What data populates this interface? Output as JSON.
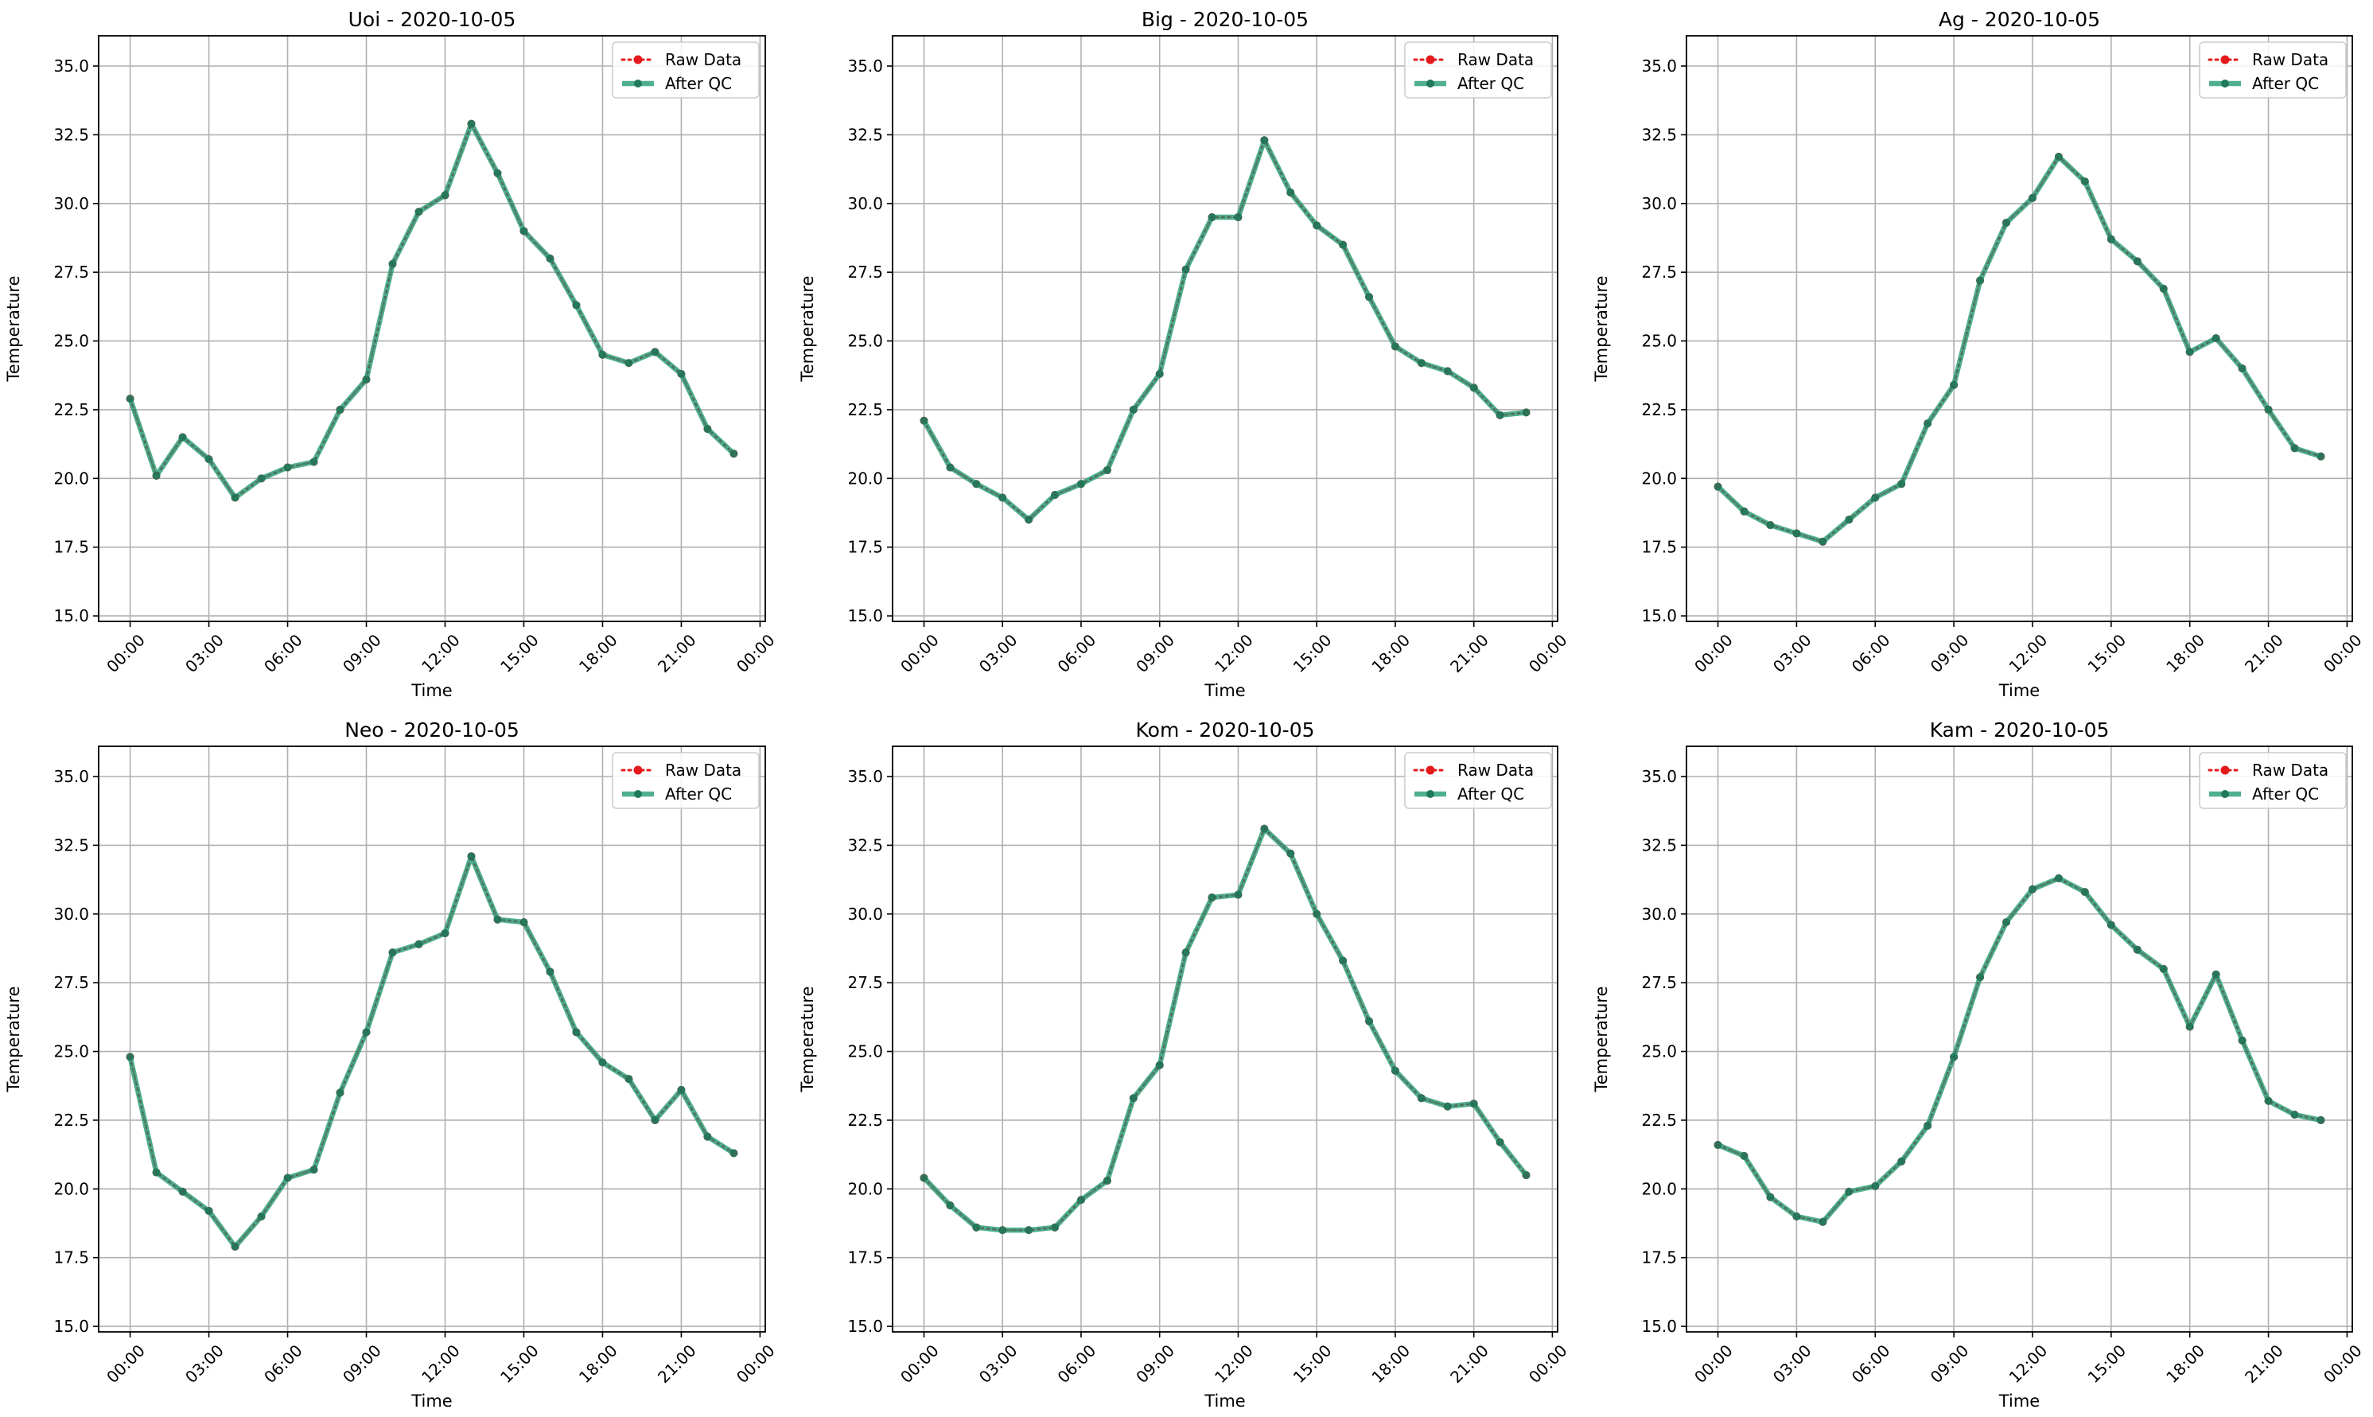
{
  "chart_data": [
    {
      "type": "line",
      "title": "Uoi - 2020-10-05",
      "xlabel": "Time",
      "ylabel": "Temperature",
      "ylim": [
        14.8,
        36.1
      ],
      "yticks": [
        "15.0",
        "17.5",
        "20.0",
        "22.5",
        "25.0",
        "27.5",
        "30.0",
        "32.5",
        "35.0"
      ],
      "xticks": [
        "00:00",
        "03:00",
        "06:00",
        "09:00",
        "12:00",
        "15:00",
        "18:00",
        "21:00",
        "00:00"
      ],
      "grid": true,
      "legend": "top-right",
      "x_hours": [
        0,
        1,
        2,
        3,
        4,
        5,
        6,
        7,
        8,
        9,
        10,
        11,
        12,
        13,
        14,
        15,
        16,
        17,
        18,
        19,
        20,
        21,
        22,
        23
      ],
      "series": [
        {
          "name": "Raw Data",
          "color": "#e41a1c",
          "values": [
            22.9,
            20.1,
            21.5,
            20.7,
            19.3,
            20.0,
            20.4,
            20.6,
            22.5,
            23.6,
            27.8,
            29.7,
            30.3,
            32.9,
            31.1,
            29.0,
            28.0,
            26.3,
            24.5,
            24.2,
            24.6,
            23.8,
            21.8,
            20.9
          ]
        },
        {
          "name": "After QC",
          "color": "#2a9d78",
          "values": [
            22.9,
            20.1,
            21.5,
            20.7,
            19.3,
            20.0,
            20.4,
            20.6,
            22.5,
            23.6,
            27.8,
            29.7,
            30.3,
            32.9,
            31.1,
            29.0,
            28.0,
            26.3,
            24.5,
            24.2,
            24.6,
            23.8,
            21.8,
            20.9
          ]
        }
      ]
    },
    {
      "type": "line",
      "title": "Big - 2020-10-05",
      "xlabel": "Time",
      "ylabel": "Temperature",
      "ylim": [
        14.8,
        36.1
      ],
      "yticks": [
        "15.0",
        "17.5",
        "20.0",
        "22.5",
        "25.0",
        "27.5",
        "30.0",
        "32.5",
        "35.0"
      ],
      "xticks": [
        "00:00",
        "03:00",
        "06:00",
        "09:00",
        "12:00",
        "15:00",
        "18:00",
        "21:00",
        "00:00"
      ],
      "grid": true,
      "legend": "top-right",
      "x_hours": [
        0,
        1,
        2,
        3,
        4,
        5,
        6,
        7,
        8,
        9,
        10,
        11,
        12,
        13,
        14,
        15,
        16,
        17,
        18,
        19,
        20,
        21,
        22,
        23
      ],
      "series": [
        {
          "name": "Raw Data",
          "color": "#e41a1c",
          "values": [
            22.1,
            20.4,
            19.8,
            19.3,
            18.5,
            19.4,
            19.8,
            20.3,
            22.5,
            23.8,
            27.6,
            29.5,
            29.5,
            32.3,
            30.4,
            29.2,
            28.5,
            26.6,
            24.8,
            24.2,
            23.9,
            23.3,
            22.3,
            22.4
          ]
        },
        {
          "name": "After QC",
          "color": "#2a9d78",
          "values": [
            22.1,
            20.4,
            19.8,
            19.3,
            18.5,
            19.4,
            19.8,
            20.3,
            22.5,
            23.8,
            27.6,
            29.5,
            29.5,
            32.3,
            30.4,
            29.2,
            28.5,
            26.6,
            24.8,
            24.2,
            23.9,
            23.3,
            22.3,
            22.4
          ]
        }
      ]
    },
    {
      "type": "line",
      "title": "Ag - 2020-10-05",
      "xlabel": "Time",
      "ylabel": "Temperature",
      "ylim": [
        14.8,
        36.1
      ],
      "yticks": [
        "15.0",
        "17.5",
        "20.0",
        "22.5",
        "25.0",
        "27.5",
        "30.0",
        "32.5",
        "35.0"
      ],
      "xticks": [
        "00:00",
        "03:00",
        "06:00",
        "09:00",
        "12:00",
        "15:00",
        "18:00",
        "21:00",
        "00:00"
      ],
      "grid": true,
      "legend": "top-right",
      "x_hours": [
        0,
        1,
        2,
        3,
        4,
        5,
        6,
        7,
        8,
        9,
        10,
        11,
        12,
        13,
        14,
        15,
        16,
        17,
        18,
        19,
        20,
        21,
        22,
        23
      ],
      "series": [
        {
          "name": "Raw Data",
          "color": "#e41a1c",
          "values": [
            19.7,
            18.8,
            18.3,
            18.0,
            17.7,
            18.5,
            19.3,
            19.8,
            22.0,
            23.4,
            27.2,
            29.3,
            30.2,
            31.7,
            30.8,
            28.7,
            27.9,
            26.9,
            24.6,
            25.1,
            24.0,
            22.5,
            21.1,
            20.8
          ]
        },
        {
          "name": "After QC",
          "color": "#2a9d78",
          "values": [
            19.7,
            18.8,
            18.3,
            18.0,
            17.7,
            18.5,
            19.3,
            19.8,
            22.0,
            23.4,
            27.2,
            29.3,
            30.2,
            31.7,
            30.8,
            28.7,
            27.9,
            26.9,
            24.6,
            25.1,
            24.0,
            22.5,
            21.1,
            20.8
          ]
        }
      ]
    },
    {
      "type": "line",
      "title": "Neo - 2020-10-05",
      "xlabel": "Time",
      "ylabel": "Temperature",
      "ylim": [
        14.8,
        36.1
      ],
      "yticks": [
        "15.0",
        "17.5",
        "20.0",
        "22.5",
        "25.0",
        "27.5",
        "30.0",
        "32.5",
        "35.0"
      ],
      "xticks": [
        "00:00",
        "03:00",
        "06:00",
        "09:00",
        "12:00",
        "15:00",
        "18:00",
        "21:00",
        "00:00"
      ],
      "grid": true,
      "legend": "top-right",
      "x_hours": [
        0,
        1,
        2,
        3,
        4,
        5,
        6,
        7,
        8,
        9,
        10,
        11,
        12,
        13,
        14,
        15,
        16,
        17,
        18,
        19,
        20,
        21,
        22,
        23
      ],
      "series": [
        {
          "name": "Raw Data",
          "color": "#e41a1c",
          "values": [
            24.8,
            20.6,
            19.9,
            19.2,
            17.9,
            19.0,
            20.4,
            20.7,
            23.5,
            25.7,
            28.6,
            28.9,
            29.3,
            32.1,
            29.8,
            29.7,
            27.9,
            25.7,
            24.6,
            24.0,
            22.5,
            23.6,
            21.9,
            21.3
          ]
        },
        {
          "name": "After QC",
          "color": "#2a9d78",
          "values": [
            24.8,
            20.6,
            19.9,
            19.2,
            17.9,
            19.0,
            20.4,
            20.7,
            23.5,
            25.7,
            28.6,
            28.9,
            29.3,
            32.1,
            29.8,
            29.7,
            27.9,
            25.7,
            24.6,
            24.0,
            22.5,
            23.6,
            21.9,
            21.3
          ]
        }
      ]
    },
    {
      "type": "line",
      "title": "Kom - 2020-10-05",
      "xlabel": "Time",
      "ylabel": "Temperature",
      "ylim": [
        14.8,
        36.1
      ],
      "yticks": [
        "15.0",
        "17.5",
        "20.0",
        "22.5",
        "25.0",
        "27.5",
        "30.0",
        "32.5",
        "35.0"
      ],
      "xticks": [
        "00:00",
        "03:00",
        "06:00",
        "09:00",
        "12:00",
        "15:00",
        "18:00",
        "21:00",
        "00:00"
      ],
      "grid": true,
      "legend": "top-right",
      "x_hours": [
        0,
        1,
        2,
        3,
        4,
        5,
        6,
        7,
        8,
        9,
        10,
        11,
        12,
        13,
        14,
        15,
        16,
        17,
        18,
        19,
        20,
        21,
        22,
        23
      ],
      "series": [
        {
          "name": "Raw Data",
          "color": "#e41a1c",
          "values": [
            20.4,
            19.4,
            18.6,
            18.5,
            18.5,
            18.6,
            19.6,
            20.3,
            23.3,
            24.5,
            28.6,
            30.6,
            30.7,
            33.1,
            32.2,
            30.0,
            28.3,
            26.1,
            24.3,
            23.3,
            23.0,
            23.1,
            21.7,
            20.5
          ]
        },
        {
          "name": "After QC",
          "color": "#2a9d78",
          "values": [
            20.4,
            19.4,
            18.6,
            18.5,
            18.5,
            18.6,
            19.6,
            20.3,
            23.3,
            24.5,
            28.6,
            30.6,
            30.7,
            33.1,
            32.2,
            30.0,
            28.3,
            26.1,
            24.3,
            23.3,
            23.0,
            23.1,
            21.7,
            20.5
          ]
        }
      ]
    },
    {
      "type": "line",
      "title": "Kam - 2020-10-05",
      "xlabel": "Time",
      "ylabel": "Temperature",
      "ylim": [
        14.8,
        36.1
      ],
      "yticks": [
        "15.0",
        "17.5",
        "20.0",
        "22.5",
        "25.0",
        "27.5",
        "30.0",
        "32.5",
        "35.0"
      ],
      "xticks": [
        "00:00",
        "03:00",
        "06:00",
        "09:00",
        "12:00",
        "15:00",
        "18:00",
        "21:00",
        "00:00"
      ],
      "grid": true,
      "legend": "top-right",
      "x_hours": [
        0,
        1,
        2,
        3,
        4,
        5,
        6,
        7,
        8,
        9,
        10,
        11,
        12,
        13,
        14,
        15,
        16,
        17,
        18,
        19,
        20,
        21,
        22,
        23
      ],
      "series": [
        {
          "name": "Raw Data",
          "color": "#e41a1c",
          "values": [
            21.6,
            21.2,
            19.7,
            19.0,
            18.8,
            19.9,
            20.1,
            21.0,
            22.3,
            24.8,
            27.7,
            29.7,
            30.9,
            31.3,
            30.8,
            29.6,
            28.7,
            28.0,
            25.9,
            27.8,
            25.4,
            23.2,
            22.7,
            22.5
          ]
        },
        {
          "name": "After QC",
          "color": "#2a9d78",
          "values": [
            21.6,
            21.2,
            19.7,
            19.0,
            18.8,
            19.9,
            20.1,
            21.0,
            22.3,
            24.8,
            27.7,
            29.7,
            30.9,
            31.3,
            30.8,
            29.6,
            28.7,
            28.0,
            25.9,
            27.8,
            25.4,
            23.2,
            22.7,
            22.5
          ]
        }
      ]
    }
  ]
}
